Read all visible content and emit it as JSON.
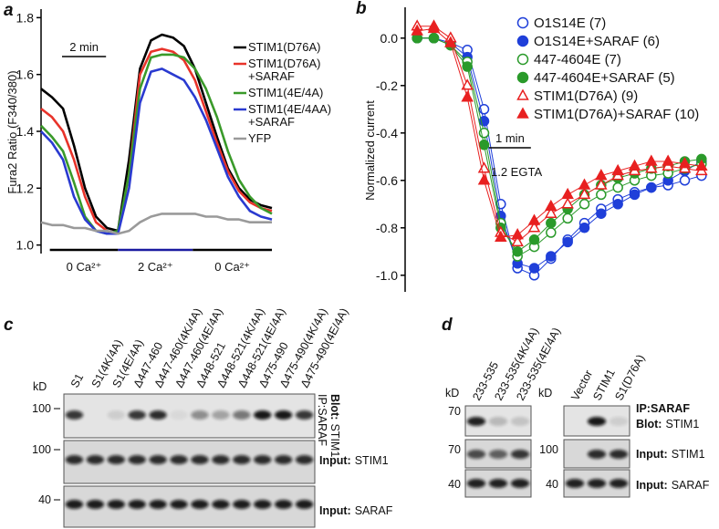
{
  "panel_labels": [
    "a",
    "b",
    "c",
    "d"
  ],
  "chart_data": [
    {
      "type": "line",
      "y_label": "Fura2 Ratio (F340/380)",
      "x": [
        0,
        0.5,
        1,
        1.5,
        2,
        2.5,
        3,
        3.5,
        4,
        4.5,
        5,
        5.5,
        6,
        6.5,
        7,
        7.5,
        8,
        8.5,
        9,
        9.5,
        10,
        10.5
      ],
      "xlim": [
        0,
        10.5
      ],
      "ylim": [
        0.97,
        1.83
      ],
      "yticks": [
        {
          "value": 1,
          "label": "1.0"
        },
        1.2,
        1.4,
        1.6,
        1.8
      ],
      "scale_bar": {
        "label": "2 min",
        "value": 2
      },
      "phases": [
        {
          "label": "0 Ca²⁺",
          "start": 0.4,
          "end": 3.5,
          "color": "#000000"
        },
        {
          "label": "2 Ca²⁺",
          "start": 3.5,
          "end": 6.9,
          "color": "#1a1aa0"
        },
        {
          "label": "0 Ca²⁺",
          "start": 6.9,
          "end": 10.5,
          "color": "#000000"
        }
      ],
      "series": [
        {
          "name": "STIM1(D76A)",
          "color": "#000000",
          "values": [
            1.55,
            1.52,
            1.48,
            1.35,
            1.2,
            1.1,
            1.06,
            1.05,
            1.3,
            1.62,
            1.72,
            1.74,
            1.73,
            1.7,
            1.62,
            1.5,
            1.38,
            1.27,
            1.2,
            1.16,
            1.14,
            1.13
          ]
        },
        {
          "name": "STIM1(D76A)\n+SARAF",
          "color": "#e8332a",
          "values": [
            1.48,
            1.45,
            1.4,
            1.3,
            1.17,
            1.08,
            1.05,
            1.04,
            1.25,
            1.6,
            1.68,
            1.69,
            1.68,
            1.65,
            1.58,
            1.47,
            1.36,
            1.26,
            1.19,
            1.15,
            1.13,
            1.12
          ]
        },
        {
          "name": "STIM1(4E/4A)",
          "color": "#3a9a2a",
          "values": [
            1.42,
            1.38,
            1.33,
            1.22,
            1.1,
            1.05,
            1.04,
            1.05,
            1.25,
            1.55,
            1.66,
            1.67,
            1.67,
            1.66,
            1.62,
            1.55,
            1.45,
            1.33,
            1.23,
            1.17,
            1.13,
            1.11
          ]
        },
        {
          "name": "STIM1(4E/4AA)\n+SARAF",
          "color": "#2a3ad0",
          "values": [
            1.4,
            1.36,
            1.3,
            1.17,
            1.09,
            1.05,
            1.04,
            1.04,
            1.2,
            1.5,
            1.61,
            1.62,
            1.6,
            1.58,
            1.52,
            1.44,
            1.34,
            1.24,
            1.17,
            1.12,
            1.1,
            1.09
          ]
        },
        {
          "name": "YFP",
          "color": "#9a9a9a",
          "values": [
            1.08,
            1.07,
            1.07,
            1.06,
            1.06,
            1.05,
            1.05,
            1.04,
            1.05,
            1.08,
            1.1,
            1.11,
            1.11,
            1.11,
            1.11,
            1.1,
            1.1,
            1.09,
            1.09,
            1.08,
            1.08,
            1.08
          ]
        }
      ]
    },
    {
      "type": "line",
      "y_label": "Normalized current",
      "x": [
        0,
        0.4,
        0.8,
        1.2,
        1.6,
        2,
        2.4,
        2.8,
        3.2,
        3.6,
        4,
        4.4,
        4.8,
        5.2,
        5.6,
        6,
        6.4,
        6.8
      ],
      "xlim": [
        -0.2,
        7.0
      ],
      "ylim": [
        -1.07,
        0.13
      ],
      "yticks": [
        {
          "value": 0,
          "label": "0.0"
        },
        -0.2,
        -0.4,
        -0.6,
        -0.8,
        {
          "value": -1,
          "label": "-1.0"
        }
      ],
      "scale_bar": {
        "label": "1 min",
        "value": 1
      },
      "annotation": "1.2 EGTA",
      "series": [
        {
          "name": "O1S14E (7)",
          "color": "#1f3fd9",
          "marker": "circle",
          "filled": false,
          "values": [
            0,
            0,
            -0.02,
            -0.05,
            -0.3,
            -0.7,
            -0.97,
            -1.0,
            -0.93,
            -0.85,
            -0.78,
            -0.72,
            -0.68,
            -0.65,
            -0.63,
            -0.62,
            -0.6,
            -0.58
          ]
        },
        {
          "name": "O1S14E+SARAF (6)",
          "color": "#1f3fd9",
          "marker": "circle",
          "filled": true,
          "values": [
            0,
            0,
            -0.02,
            -0.08,
            -0.35,
            -0.75,
            -0.95,
            -0.97,
            -0.92,
            -0.86,
            -0.8,
            -0.74,
            -0.7,
            -0.66,
            -0.63,
            -0.6,
            -0.56,
            -0.52
          ]
        },
        {
          "name": "447-4604E (7)",
          "color": "#2a9a2a",
          "marker": "circle",
          "filled": false,
          "values": [
            0,
            0,
            -0.03,
            -0.1,
            -0.4,
            -0.78,
            -0.92,
            -0.88,
            -0.82,
            -0.76,
            -0.7,
            -0.66,
            -0.63,
            -0.6,
            -0.58,
            -0.57,
            -0.55,
            -0.53
          ]
        },
        {
          "name": "447-4604E+SARAF (5)",
          "color": "#2a9a2a",
          "marker": "circle",
          "filled": true,
          "values": [
            0,
            0,
            -0.03,
            -0.12,
            -0.45,
            -0.8,
            -0.9,
            -0.85,
            -0.78,
            -0.72,
            -0.66,
            -0.62,
            -0.59,
            -0.57,
            -0.55,
            -0.54,
            -0.52,
            -0.51
          ]
        },
        {
          "name": "STIM1(D76A) (9)",
          "color": "#e82020",
          "marker": "triangle",
          "filled": false,
          "values": [
            0.05,
            0.05,
            0,
            -0.2,
            -0.55,
            -0.82,
            -0.86,
            -0.8,
            -0.74,
            -0.7,
            -0.66,
            -0.62,
            -0.58,
            -0.56,
            -0.55,
            -0.54,
            -0.55,
            -0.56
          ]
        },
        {
          "name": "STIM1(D76A)+SARAF (10)",
          "color": "#e82020",
          "marker": "triangle",
          "filled": true,
          "values": [
            0.03,
            0.04,
            -0.02,
            -0.25,
            -0.6,
            -0.84,
            -0.83,
            -0.77,
            -0.71,
            -0.66,
            -0.62,
            -0.58,
            -0.56,
            -0.54,
            -0.52,
            -0.52,
            -0.53,
            -0.54
          ]
        }
      ]
    }
  ],
  "blots": {
    "c": {
      "kd_label": "kD",
      "lanes": [
        "S1",
        "S1(4K/4A)",
        "S1(4E/4A)",
        "Δ447-460",
        "Δ447-460(4K/4A)",
        "Δ447-460(4E/4A)",
        "Δ448-521",
        "Δ448-521(4K/4A)",
        "Δ448-521(4E/4A)",
        "Δ475-490",
        "Δ475-490(4K/4A)",
        "Δ475-490(4E/4A)"
      ],
      "ip_label": "IP:SARAF",
      "blot_label": {
        "bold": "Blot:",
        "text": "STIM1"
      },
      "rows": [
        {
          "kd": "100"
        },
        {
          "kd": "100",
          "label": {
            "bold": "Input:",
            "text": "STIM1"
          }
        },
        {
          "kd": "40",
          "label": {
            "bold": "Input:",
            "text": "SARAF"
          }
        }
      ]
    },
    "d": {
      "left": {
        "kd_label": "kD",
        "lanes": [
          "233-535",
          "233-535(4K/4A)",
          "233-535(4E/4A)"
        ],
        "rows": [
          {
            "kd": "70"
          },
          {
            "kd": "70"
          },
          {
            "kd": "40"
          }
        ]
      },
      "right": {
        "kd_label": "kD",
        "lanes": [
          "Vector",
          "STIM1",
          "S1(D76A)"
        ],
        "rows": [
          {},
          {
            "kd": "100"
          },
          {
            "kd": "40"
          }
        ]
      },
      "ip_label": "IP:SARAF",
      "blot_label": {
        "bold": "Blot:",
        "text": "STIM1"
      },
      "input_labels": [
        {
          "bold": "Input:",
          "text": "STIM1"
        },
        {
          "bold": "Input:",
          "text": "SARAF"
        }
      ]
    }
  }
}
